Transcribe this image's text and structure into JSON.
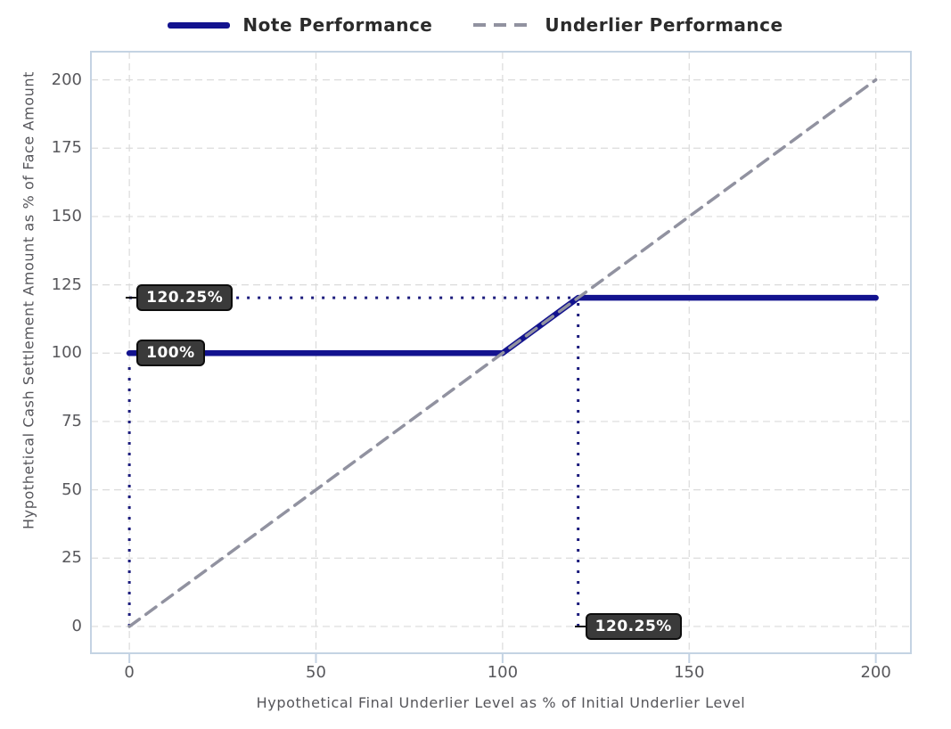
{
  "colors": {
    "background": "#ffffff",
    "note_line": "#13138f",
    "underlier_line": "#9192a0",
    "grid": "#dbdbdb",
    "plot_border": "#c4d3e3",
    "tick_label": "#58585c",
    "axis_title": "#55555a",
    "legend_text": "#2b2b2b",
    "guide_dotted": "#1c1c7d",
    "annotation_bg": "#3a3a3a",
    "annotation_border": "#0d0d0d",
    "annotation_text": "#ffffff"
  },
  "legend": {
    "items": [
      {
        "label": "Note Performance",
        "style": "solid",
        "color": "#13138f"
      },
      {
        "label": "Underlier Performance",
        "style": "dashed",
        "color": "#9192a0"
      }
    ]
  },
  "chart_data": {
    "type": "line",
    "title": "",
    "xlabel": "Hypothetical Final Underlier Level as % of Initial Underlier Level",
    "ylabel": "Hypothetical Cash Settlement Amount as % of Face Amount",
    "xlim": [
      -10.3,
      209.4
    ],
    "ylim": [
      -9.8,
      210.3
    ],
    "x_ticks": [
      0,
      50,
      100,
      150,
      200
    ],
    "y_ticks": [
      0,
      25,
      50,
      75,
      100,
      125,
      150,
      175,
      200
    ],
    "grid": true,
    "legend_position": "top",
    "series": [
      {
        "name": "Note Performance",
        "style": "solid",
        "color": "#13138f",
        "width": 6.5,
        "points": [
          [
            0,
            100
          ],
          [
            100,
            100
          ],
          [
            120.25,
            120.25
          ],
          [
            200,
            120.25
          ]
        ]
      },
      {
        "name": "Underlier Performance",
        "style": "dashed",
        "color": "#9192a0",
        "width": 3.5,
        "points": [
          [
            0,
            0
          ],
          [
            200,
            200
          ]
        ]
      }
    ],
    "guides": [
      {
        "from": [
          0,
          120.25
        ],
        "to": [
          120.25,
          120.25
        ]
      },
      {
        "from": [
          120.25,
          0
        ],
        "to": [
          120.25,
          120.25
        ]
      },
      {
        "from": [
          0,
          0
        ],
        "to": [
          0,
          97
        ]
      }
    ],
    "annotations": [
      {
        "text": "120.25%",
        "x": 0,
        "y": 120.25,
        "leader": true
      },
      {
        "text": "100%",
        "x": 0,
        "y": 100,
        "leader": false
      },
      {
        "text": "120.25%",
        "x": 120.25,
        "y": 0,
        "leader": true
      }
    ],
    "key_values": {
      "maximum_settlement_amount_pct": "120.25%",
      "face_amount_pct": "100%",
      "cap_level_pct": "120.25%"
    }
  }
}
